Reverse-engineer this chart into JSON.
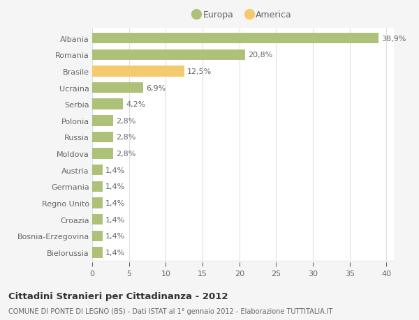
{
  "categories": [
    "Albania",
    "Romania",
    "Brasile",
    "Ucraina",
    "Serbia",
    "Polonia",
    "Russia",
    "Moldova",
    "Austria",
    "Germania",
    "Regno Unito",
    "Croazia",
    "Bosnia-Erzegovina",
    "Bielorussia"
  ],
  "values": [
    38.9,
    20.8,
    12.5,
    6.9,
    4.2,
    2.8,
    2.8,
    2.8,
    1.4,
    1.4,
    1.4,
    1.4,
    1.4,
    1.4
  ],
  "labels": [
    "38,9%",
    "20,8%",
    "12,5%",
    "6,9%",
    "4,2%",
    "2,8%",
    "2,8%",
    "2,8%",
    "1,4%",
    "1,4%",
    "1,4%",
    "1,4%",
    "1,4%",
    "1,4%"
  ],
  "colors": [
    "#adc178",
    "#adc178",
    "#f5c96e",
    "#adc178",
    "#adc178",
    "#adc178",
    "#adc178",
    "#adc178",
    "#adc178",
    "#adc178",
    "#adc178",
    "#adc178",
    "#adc178",
    "#adc178"
  ],
  "europa_color": "#adc178",
  "america_color": "#f5c96e",
  "plot_bg_color": "#ffffff",
  "fig_bg_color": "#f5f5f5",
  "grid_color": "#e0e0e0",
  "text_color": "#666666",
  "title": "Cittadini Stranieri per Cittadinanza - 2012",
  "subtitle": "COMUNE DI PONTE DI LEGNO (BS) - Dati ISTAT al 1° gennaio 2012 - Elaborazione TUTTITALIA.IT",
  "legend_europa": "Europa",
  "legend_america": "America",
  "xlim": [
    0,
    41
  ],
  "xticks": [
    0,
    5,
    10,
    15,
    20,
    25,
    30,
    35,
    40
  ],
  "bar_height": 0.65,
  "label_fontsize": 8,
  "tick_fontsize": 8,
  "ytick_fontsize": 8
}
